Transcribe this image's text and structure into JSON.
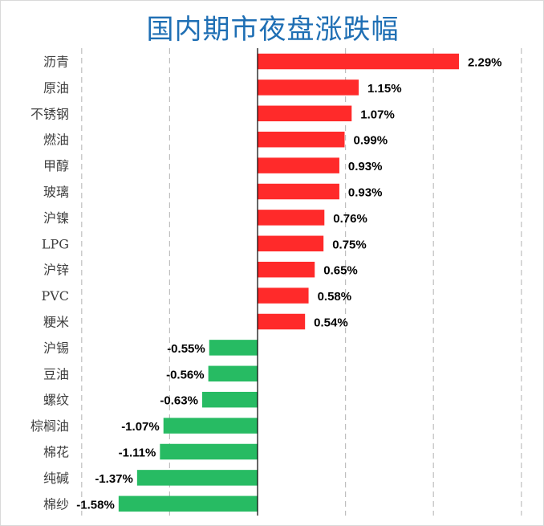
{
  "title": "国内期市夜盘涨跌幅",
  "colors": {
    "positive": "#ff2a2a",
    "negative": "#27bb63",
    "title": "#1f6fb4",
    "grid": "#bfbfbf",
    "axis": "#000000"
  },
  "chart_data": {
    "type": "bar",
    "orientation": "horizontal",
    "title": "国内期市夜盘涨跌幅",
    "xlabel": "",
    "ylabel": "",
    "unit": "%",
    "xlim": [
      -2.0,
      3.0
    ],
    "grid": "vertical dashed",
    "legend": "none",
    "categories": [
      "沥青",
      "原油",
      "不锈钢",
      "燃油",
      "甲醇",
      "玻璃",
      "沪镍",
      "LPG",
      "沪锌",
      "PVC",
      "粳米",
      "沪锡",
      "豆油",
      "螺纹",
      "棕榈油",
      "棉花",
      "纯碱",
      "棉纱"
    ],
    "values": [
      2.29,
      1.15,
      1.07,
      0.99,
      0.93,
      0.93,
      0.76,
      0.75,
      0.65,
      0.58,
      0.54,
      -0.55,
      -0.56,
      -0.63,
      -1.07,
      -1.11,
      -1.37,
      -1.58
    ],
    "value_labels": [
      "2.29%",
      "1.15%",
      "1.07%",
      "0.99%",
      "0.93%",
      "0.93%",
      "0.76%",
      "0.75%",
      "0.65%",
      "0.58%",
      "0.54%",
      "-0.55%",
      "-0.56%",
      "-0.63%",
      "-1.07%",
      "-1.11%",
      "-1.37%",
      "-1.58%"
    ]
  }
}
